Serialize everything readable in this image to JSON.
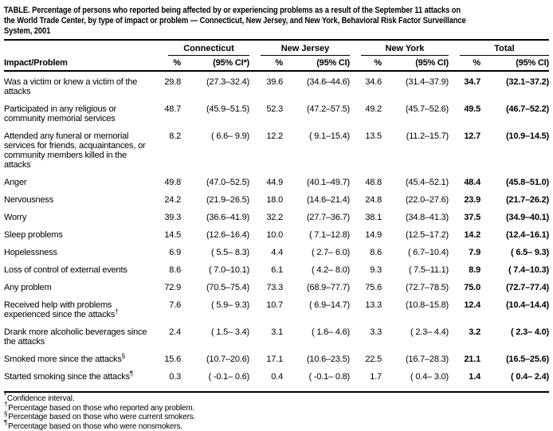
{
  "title_lines": [
    "TABLE. Percentage of persons who reported being affected by or experiencing problems as a result of the September 11 attacks on",
    "the World Trade Center, by type of impact or problem — Connecticut, New Jersey, and New York, Behavioral Risk Factor Surveillance",
    "System, 2001"
  ],
  "table": {
    "row_header": "Impact/Problem",
    "groups": [
      {
        "name": "Connecticut",
        "pct_label": "%",
        "ci_label": "(95% CI*)"
      },
      {
        "name": "New Jersey",
        "pct_label": "%",
        "ci_label": "(95% CI)"
      },
      {
        "name": "New York",
        "pct_label": "%",
        "ci_label": "(95% CI)"
      },
      {
        "name": "Total",
        "pct_label": "%",
        "ci_label": "(95% CI)"
      }
    ],
    "rows": [
      {
        "label": "Was a victim or knew a victim of the attacks",
        "marker": "",
        "values": [
          [
            "29.8",
            "(27.3–32.4)"
          ],
          [
            "39.6",
            "(34.6–44.6)"
          ],
          [
            "34.6",
            "(31.4–37.9)"
          ],
          [
            "34.7",
            "(32.1–37.2)"
          ]
        ]
      },
      {
        "label": "Participated in any religious or community memorial services",
        "marker": "",
        "values": [
          [
            "48.7",
            "(45.9–51.5)"
          ],
          [
            "52.3",
            "(47.2–57.5)"
          ],
          [
            "49.2",
            "(45.7–52.6)"
          ],
          [
            "49.5",
            "(46.7–52.2)"
          ]
        ]
      },
      {
        "label": "Attended any funeral or memorial services for friends, acquaintances, or community members killed in the attacks",
        "marker": "",
        "values": [
          [
            "8.2",
            "( 6.6– 9.9)"
          ],
          [
            "12.2",
            "( 9.1–15.4)"
          ],
          [
            "13.5",
            "(11.2–15.7)"
          ],
          [
            "12.7",
            "(10.9–14.5)"
          ]
        ]
      },
      {
        "label": "Anger",
        "marker": "",
        "values": [
          [
            "49.8",
            "(47.0–52.5)"
          ],
          [
            "44.9",
            "(40.1–49.7)"
          ],
          [
            "48.8",
            "(45.4–52.1)"
          ],
          [
            "48.4",
            "(45.8–51.0)"
          ]
        ]
      },
      {
        "label": "Nervousness",
        "marker": "",
        "values": [
          [
            "24.2",
            "(21.9–26.5)"
          ],
          [
            "18.0",
            "(14.6–21.4)"
          ],
          [
            "24.8",
            "(22.0–27.6)"
          ],
          [
            "23.9",
            "(21.7–26.2)"
          ]
        ]
      },
      {
        "label": "Worry",
        "marker": "",
        "values": [
          [
            "39.3",
            "(36.6–41.9)"
          ],
          [
            "32.2",
            "(27.7–36.7)"
          ],
          [
            "38.1",
            "(34.8–41.3)"
          ],
          [
            "37.5",
            "(34.9–40.1)"
          ]
        ]
      },
      {
        "label": "Sleep problems",
        "marker": "",
        "values": [
          [
            "14.5",
            "(12.6–16.4)"
          ],
          [
            "10.0",
            "( 7.1–12.8)"
          ],
          [
            "14.9",
            "(12.5–17.2)"
          ],
          [
            "14.2",
            "(12.4–16.1)"
          ]
        ]
      },
      {
        "label": "Hopelessness",
        "marker": "",
        "values": [
          [
            "6.9",
            "( 5.5– 8.3)"
          ],
          [
            "4.4",
            "( 2.7– 6.0)"
          ],
          [
            "8.6",
            "( 6.7–10.4)"
          ],
          [
            "7.9",
            "( 6.5– 9.3)"
          ]
        ]
      },
      {
        "label": "Loss of control of external events",
        "marker": "",
        "values": [
          [
            "8.6",
            "( 7.0–10.1)"
          ],
          [
            "6.1",
            "( 4.2– 8.0)"
          ],
          [
            "9.3",
            "( 7.5–11.1)"
          ],
          [
            "8.9",
            "( 7.4–10.3)"
          ]
        ]
      },
      {
        "label": "Any problem",
        "marker": "",
        "values": [
          [
            "72.9",
            "(70.5–75.4)"
          ],
          [
            "73.3",
            "(68.9–77.7)"
          ],
          [
            "75.6",
            "(72.7–78.5)"
          ],
          [
            "75.0",
            "(72.7–77.4)"
          ]
        ]
      },
      {
        "label": "Received help with problems experienced since the attacks",
        "marker": "†",
        "values": [
          [
            "7.6",
            "( 5.9– 9.3)"
          ],
          [
            "10.7",
            "( 6.9–14.7)"
          ],
          [
            "13.3",
            "(10.8–15.8)"
          ],
          [
            "12.4",
            "(10.4–14.4)"
          ]
        ]
      },
      {
        "label": "Drank more alcoholic beverages since the attacks",
        "marker": "",
        "values": [
          [
            "2.4",
            "( 1.5– 3.4)"
          ],
          [
            "3.1",
            "( 1.6– 4.6)"
          ],
          [
            "3.3",
            "( 2.3– 4.4)"
          ],
          [
            "3.2",
            "( 2.3– 4.0)"
          ]
        ]
      },
      {
        "label": "Smoked more since the attacks",
        "marker": "§",
        "values": [
          [
            "15.6",
            "(10.7–20.6)"
          ],
          [
            "17.1",
            "(10.6–23.5)"
          ],
          [
            "22.5",
            "(16.7–28.3)"
          ],
          [
            "21.1",
            "(16.5–25.6)"
          ]
        ]
      },
      {
        "label": "Started smoking since the attacks",
        "marker": "¶",
        "values": [
          [
            "0.3",
            "( -0.1– 0.6)"
          ],
          [
            "0.4",
            "( -0.1– 0.8)"
          ],
          [
            "1.7",
            "( 0.4– 3.0)"
          ],
          [
            "1.4",
            "( 0.4– 2.4)"
          ]
        ]
      }
    ]
  },
  "footnotes": [
    {
      "marker": "*",
      "text": "Confidence interval."
    },
    {
      "marker": "†",
      "text": "Percentage based on those who reported any problem."
    },
    {
      "marker": "§",
      "text": "Percentage based on those who were current smokers."
    },
    {
      "marker": "¶",
      "text": "Percentage based on those who were nonsmokers."
    }
  ]
}
